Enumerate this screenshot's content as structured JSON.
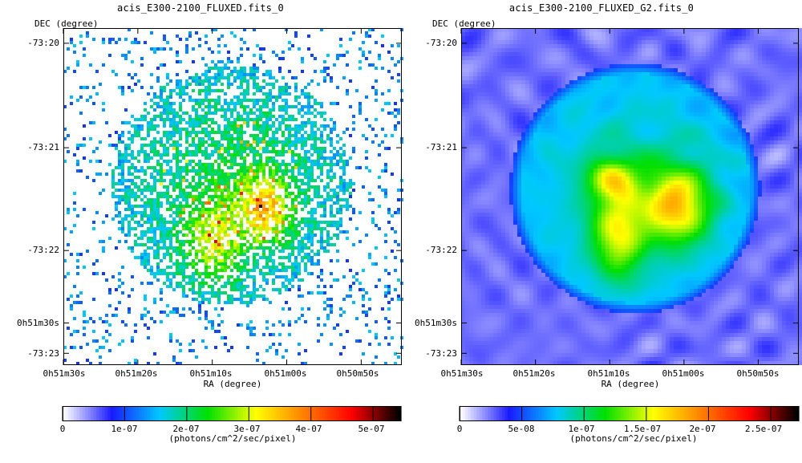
{
  "panels": [
    {
      "title": "acis_E300-2100_FLUXED.fits_0",
      "ylabel": "DEC (degree)",
      "xlabel": "RA (degree)",
      "yticks": [
        "-73:20",
        "-73:21",
        "-73:22",
        "0h51m30s",
        "-73:23"
      ],
      "xticks": [
        "0h51m30s",
        "0h51m20s",
        "0h51m10s",
        "0h51m00s",
        "0h50m50s"
      ],
      "colorbar_ticks": [
        "0",
        "1e-07",
        "2e-07",
        "3e-07",
        "4e-07",
        "5e-07"
      ],
      "colorbar_label": "(photons/cm^2/sec/pixel)",
      "colorbar_range": [
        0,
        5.5e-07
      ],
      "style": "raw-counts"
    },
    {
      "title": "acis_E300-2100_FLUXED_G2.fits_0",
      "ylabel": "DEC (degree)",
      "xlabel": "RA (degree)",
      "yticks": [
        "-73:20",
        "-73:21",
        "-73:22",
        "0h51m30s",
        "-73:23"
      ],
      "xticks": [
        "0h51m30s",
        "0h51m20s",
        "0h51m10s",
        "0h51m00s",
        "0h50m50s"
      ],
      "colorbar_ticks": [
        "0",
        "5e-08",
        "1e-07",
        "1.5e-07",
        "2e-07",
        "2.5e-07"
      ],
      "colorbar_label": "(photons/cm^2/sec/pixel)",
      "colorbar_range": [
        0,
        2.8e-07
      ],
      "style": "smoothed"
    }
  ],
  "chart_data": [
    {
      "type": "heatmap",
      "title": "acis_E300-2100_FLUXED.fits_0",
      "xlabel": "RA (degree)",
      "ylabel": "DEC (degree)",
      "x_ticks": [
        "0h51m30s",
        "0h51m20s",
        "0h51m10s",
        "0h51m00s",
        "0h50m50s"
      ],
      "y_ticks": [
        "-73:20",
        "-73:21",
        "-73:22",
        "0h51m30s",
        "-73:23"
      ],
      "colorbar": {
        "label": "(photons/cm^2/sec/pixel)",
        "ticks": [
          0,
          1e-07,
          2e-07,
          3e-07,
          4e-07,
          5e-07
        ],
        "range": [
          0,
          5.5e-07
        ]
      },
      "colormap": [
        "#ffffff",
        "#1a1aff",
        "#00c8ff",
        "#00e000",
        "#ffff00",
        "#ff8000",
        "#ff0000",
        "#000000"
      ],
      "grid": false
    },
    {
      "type": "heatmap",
      "title": "acis_E300-2100_FLUXED_G2.fits_0",
      "xlabel": "RA (degree)",
      "ylabel": "DEC (degree)",
      "x_ticks": [
        "0h51m30s",
        "0h51m20s",
        "0h51m10s",
        "0h51m00s",
        "0h50m50s"
      ],
      "y_ticks": [
        "-73:20",
        "-73:21",
        "-73:22",
        "0h51m30s",
        "-73:23"
      ],
      "colorbar": {
        "label": "(photons/cm^2/sec/pixel)",
        "ticks": [
          0,
          5e-08,
          1e-07,
          1.5e-07,
          2e-07,
          2.5e-07
        ],
        "range": [
          0,
          2.8e-07
        ]
      },
      "colormap": [
        "#ffffff",
        "#1a1aff",
        "#00c8ff",
        "#00e000",
        "#ffff00",
        "#ff8000",
        "#ff0000",
        "#000000"
      ],
      "grid": false
    }
  ]
}
